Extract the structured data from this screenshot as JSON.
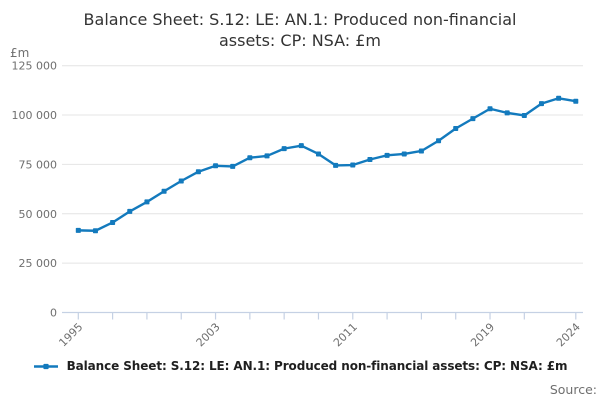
{
  "title": "Balance Sheet: S.12: LE: AN.1: Produced non-financial assets: CP: NSA: £m",
  "title_lines": [
    "Balance Sheet: S.12: LE: AN.1: Produced non-financial",
    "assets: CP: NSA: £m"
  ],
  "axis_unit": "£m",
  "source_label": "Source:",
  "legend": {
    "label": "Balance Sheet: S.12: LE: AN.1: Produced non-financial assets: CP: NSA: £m"
  },
  "colors": {
    "line": "#137abd",
    "grid": "#e4e4e4",
    "axis": "#c5d1e4",
    "text_muted": "#6f6f6f",
    "title_text": "#333333",
    "legend_text": "#1f1f1f"
  },
  "chart_data": {
    "type": "line",
    "title": "Balance Sheet: S.12: LE: AN.1: Produced non-financial assets: CP: NSA: £m",
    "unit": "£m",
    "xlabel": "",
    "ylabel": "£m",
    "grid": true,
    "legend_position": "bottom",
    "ylim": [
      0,
      125000
    ],
    "yticks": [
      0,
      25000,
      50000,
      75000,
      100000,
      125000
    ],
    "ytick_labels": [
      "0",
      "25 000",
      "50 000",
      "75 000",
      "100 000",
      "125 000"
    ],
    "x": [
      1995,
      1996,
      1997,
      1998,
      1999,
      2000,
      2001,
      2002,
      2003,
      2004,
      2005,
      2006,
      2007,
      2008,
      2009,
      2010,
      2011,
      2012,
      2013,
      2014,
      2015,
      2016,
      2017,
      2018,
      2019,
      2020,
      2021,
      2022,
      2023,
      2024
    ],
    "xticks": [
      1995,
      1997,
      1999,
      2001,
      2003,
      2005,
      2007,
      2009,
      2011,
      2013,
      2015,
      2017,
      2019,
      2021,
      2024
    ],
    "xtick_labels": [
      1995,
      2003,
      2011,
      2019,
      2024
    ],
    "series": [
      {
        "name": "Balance Sheet: S.12: LE: AN.1: Produced non-financial assets: CP: NSA: £m",
        "values": [
          41600,
          41400,
          45600,
          51200,
          56000,
          61400,
          66600,
          71300,
          74300,
          74000,
          78400,
          79300,
          83000,
          84500,
          80300,
          74500,
          74700,
          77500,
          79600,
          80300,
          81800,
          87000,
          93200,
          98200,
          103200,
          101100,
          99800,
          105800,
          108500,
          107000
        ]
      }
    ]
  }
}
